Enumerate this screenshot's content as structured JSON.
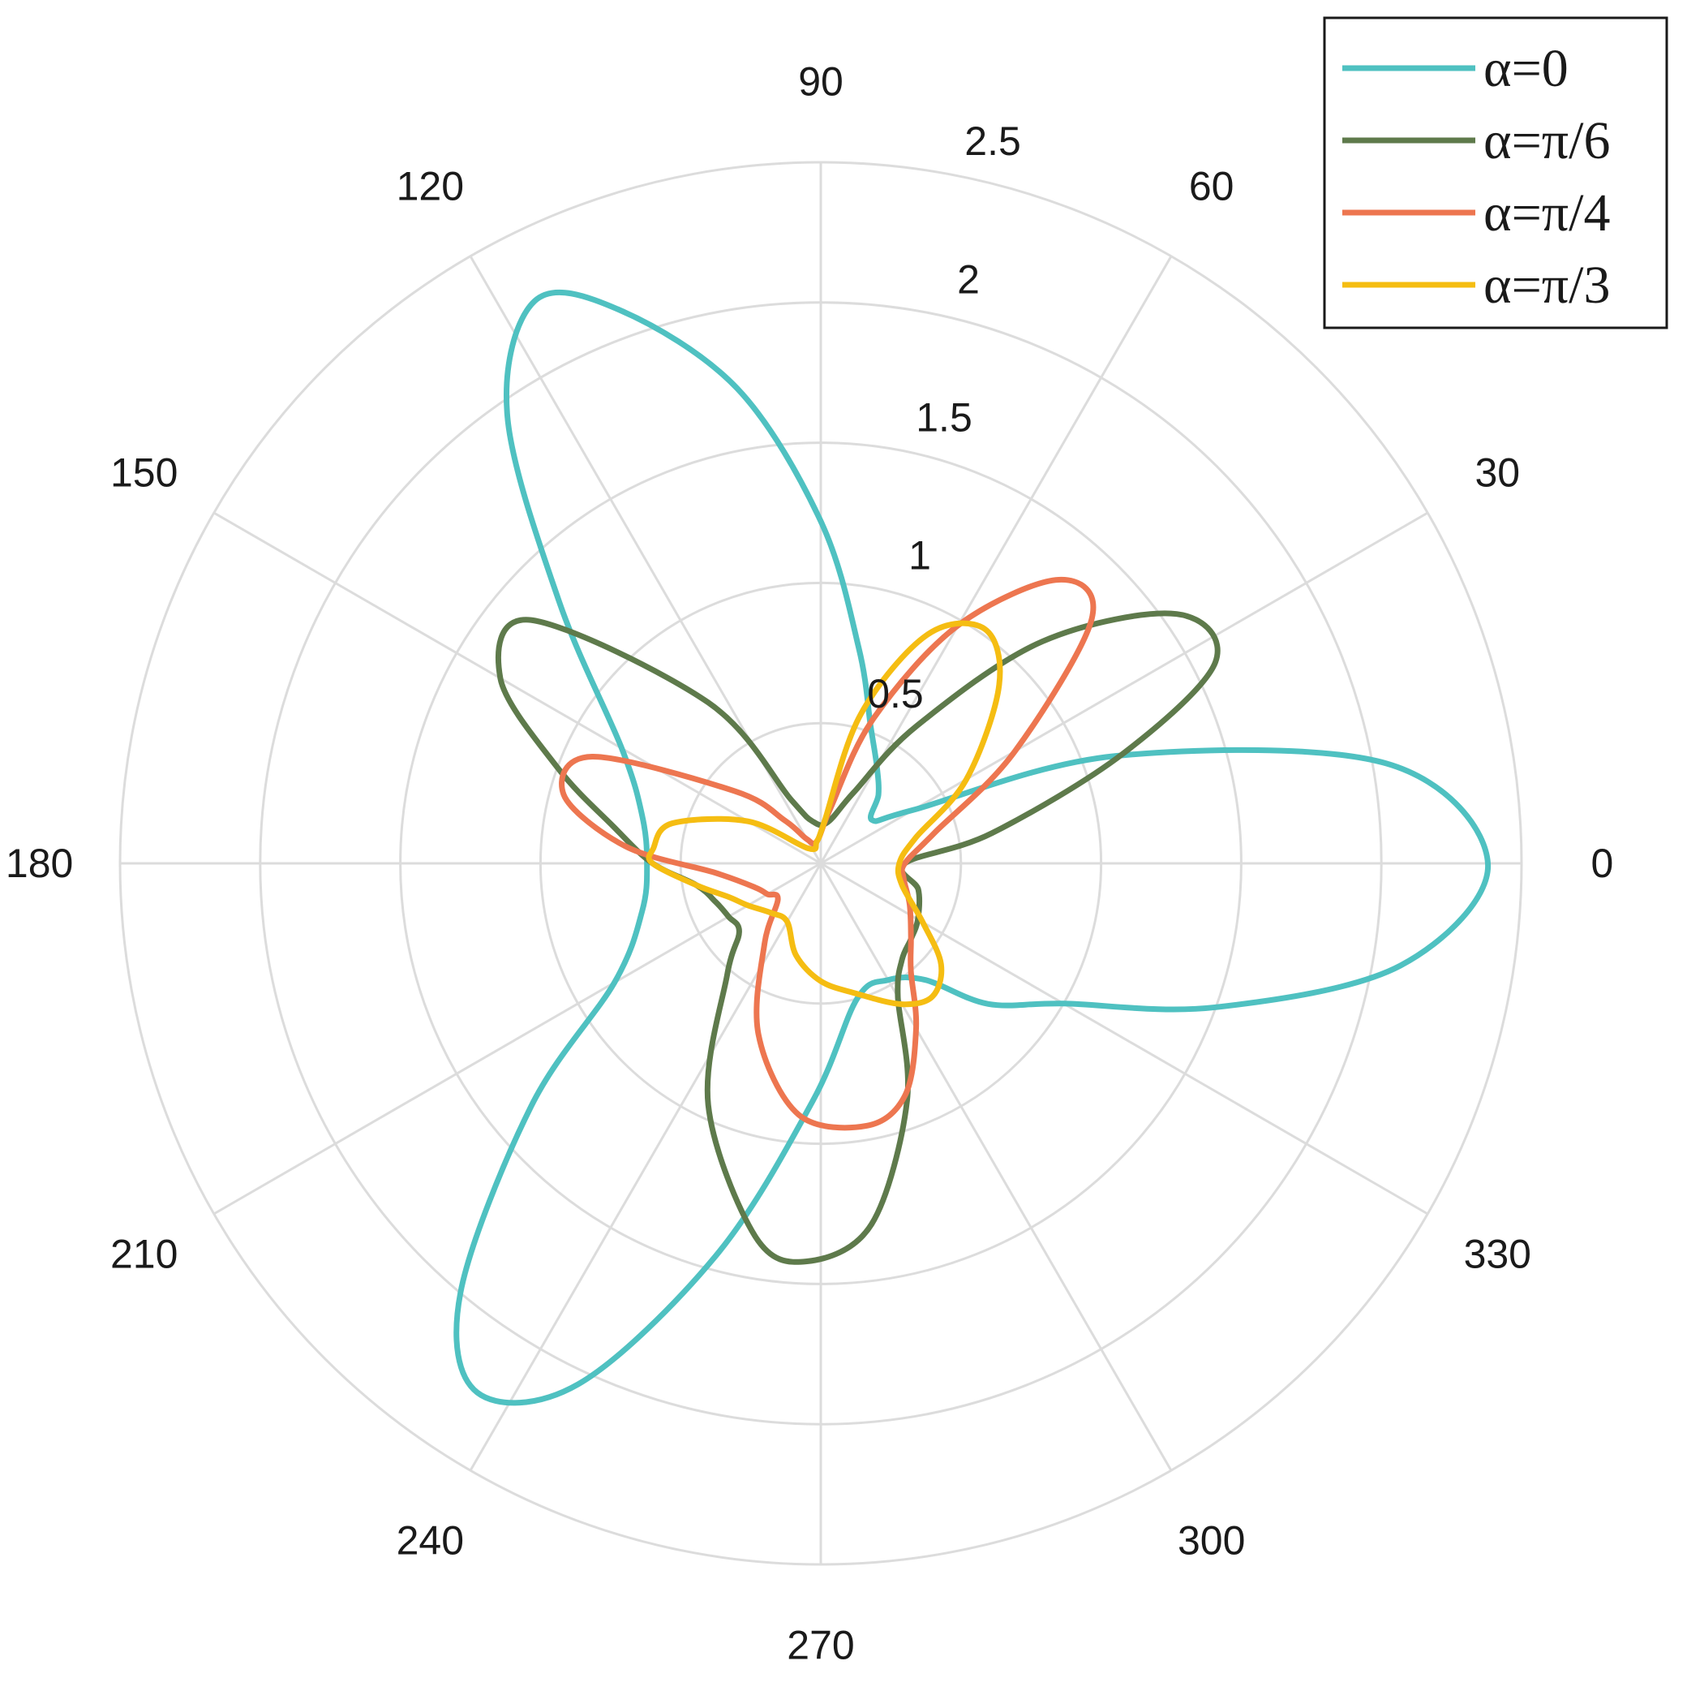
{
  "chart_data": {
    "type": "polar-line",
    "angle_unit": "degrees",
    "angle_ticks": [
      "0",
      "30",
      "60",
      "90",
      "120",
      "150",
      "180",
      "210",
      "240",
      "270",
      "300",
      "330"
    ],
    "radial_ticks": [
      "0.5",
      "1",
      "1.5",
      "2",
      "2.5"
    ],
    "rlim": [
      0,
      2.5
    ],
    "grid": true,
    "legend_position": "top-right",
    "series": [
      {
        "name": "α=0",
        "color": "#4fc1c1",
        "points": [
          [
            0,
            2.38
          ],
          [
            10,
            2.05
          ],
          [
            20,
            1.12
          ],
          [
            30,
            0.38
          ],
          [
            40,
            0.24
          ],
          [
            50,
            0.32
          ],
          [
            60,
            0.4
          ],
          [
            70,
            0.52
          ],
          [
            80,
            0.78
          ],
          [
            90,
            1.22
          ],
          [
            100,
            1.72
          ],
          [
            110,
            2.1
          ],
          [
            117,
            2.25
          ],
          [
            125,
            1.95
          ],
          [
            135,
            1.32
          ],
          [
            150,
            0.82
          ],
          [
            165,
            0.66
          ],
          [
            180,
            0.62
          ],
          [
            195,
            0.66
          ],
          [
            210,
            0.85
          ],
          [
            220,
            1.35
          ],
          [
            230,
            2.0
          ],
          [
            237,
            2.25
          ],
          [
            245,
            2.05
          ],
          [
            255,
            1.45
          ],
          [
            268,
            0.85
          ],
          [
            285,
            0.5
          ],
          [
            300,
            0.48
          ],
          [
            312,
            0.56
          ],
          [
            320,
            0.78
          ],
          [
            330,
            1.0
          ],
          [
            340,
            1.5
          ],
          [
            350,
            2.1
          ]
        ]
      },
      {
        "name": "α=π/6",
        "color": "#5e7a4b",
        "points": [
          [
            0,
            0.3
          ],
          [
            10,
            0.62
          ],
          [
            20,
            1.15
          ],
          [
            27,
            1.58
          ],
          [
            35,
            1.55
          ],
          [
            45,
            1.12
          ],
          [
            55,
            0.6
          ],
          [
            65,
            0.28
          ],
          [
            80,
            0.15
          ],
          [
            100,
            0.15
          ],
          [
            115,
            0.25
          ],
          [
            125,
            0.7
          ],
          [
            140,
            1.35
          ],
          [
            150,
            1.32
          ],
          [
            160,
            1.0
          ],
          [
            170,
            0.75
          ],
          [
            180,
            0.6
          ],
          [
            190,
            0.45
          ],
          [
            200,
            0.4
          ],
          [
            210,
            0.38
          ],
          [
            220,
            0.38
          ],
          [
            230,
            0.52
          ],
          [
            245,
            0.95
          ],
          [
            260,
            1.35
          ],
          [
            268,
            1.42
          ],
          [
            278,
            1.3
          ],
          [
            290,
            0.9
          ],
          [
            300,
            0.55
          ],
          [
            310,
            0.45
          ],
          [
            320,
            0.42
          ],
          [
            330,
            0.4
          ],
          [
            345,
            0.36
          ]
        ]
      },
      {
        "name": "α=π/4",
        "color": "#ed7650",
        "points": [
          [
            0,
            0.3
          ],
          [
            15,
            0.42
          ],
          [
            30,
            0.8
          ],
          [
            42,
            1.3
          ],
          [
            50,
            1.32
          ],
          [
            60,
            0.98
          ],
          [
            70,
            0.55
          ],
          [
            80,
            0.2
          ],
          [
            100,
            0.08
          ],
          [
            120,
            0.1
          ],
          [
            130,
            0.2
          ],
          [
            140,
            0.4
          ],
          [
            155,
            0.9
          ],
          [
            165,
            0.95
          ],
          [
            175,
            0.7
          ],
          [
            185,
            0.38
          ],
          [
            200,
            0.25
          ],
          [
            210,
            0.22
          ],
          [
            220,
            0.2
          ],
          [
            235,
            0.35
          ],
          [
            250,
            0.65
          ],
          [
            265,
            0.9
          ],
          [
            280,
            0.95
          ],
          [
            290,
            0.88
          ],
          [
            300,
            0.68
          ],
          [
            310,
            0.5
          ],
          [
            320,
            0.42
          ],
          [
            335,
            0.35
          ],
          [
            350,
            0.3
          ]
        ]
      },
      {
        "name": "α=π/3",
        "color": "#f5bd12",
        "points": [
          [
            0,
            0.28
          ],
          [
            15,
            0.35
          ],
          [
            30,
            0.6
          ],
          [
            45,
            0.9
          ],
          [
            55,
            1.02
          ],
          [
            65,
            0.9
          ],
          [
            75,
            0.55
          ],
          [
            85,
            0.15
          ],
          [
            100,
            0.08
          ],
          [
            130,
            0.07
          ],
          [
            150,
            0.3
          ],
          [
            165,
            0.55
          ],
          [
            175,
            0.6
          ],
          [
            180,
            0.6
          ],
          [
            190,
            0.45
          ],
          [
            200,
            0.35
          ],
          [
            210,
            0.3
          ],
          [
            225,
            0.25
          ],
          [
            240,
            0.24
          ],
          [
            255,
            0.34
          ],
          [
            270,
            0.42
          ],
          [
            285,
            0.48
          ],
          [
            300,
            0.58
          ],
          [
            310,
            0.62
          ],
          [
            320,
            0.56
          ],
          [
            330,
            0.42
          ],
          [
            345,
            0.3
          ]
        ]
      }
    ]
  }
}
